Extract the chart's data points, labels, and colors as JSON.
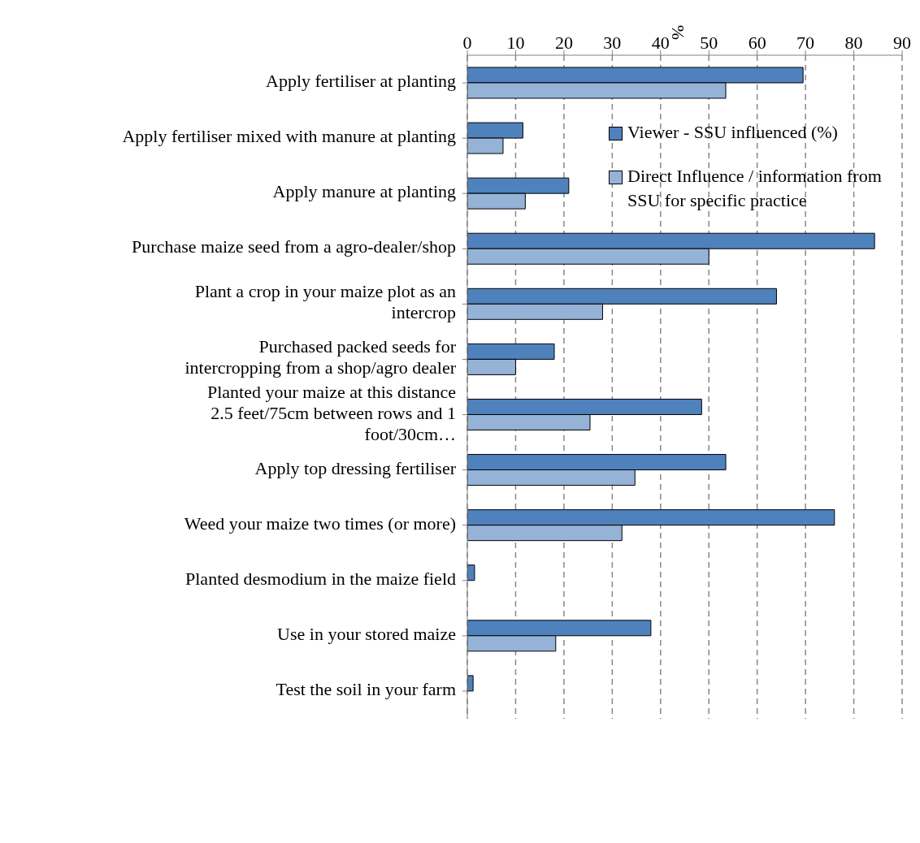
{
  "chart_data": {
    "type": "bar",
    "orientation": "horizontal",
    "x2label": "%",
    "categories": [
      "Apply fertiliser at planting",
      "Apply fertiliser mixed with manure at planting",
      "Apply manure at planting",
      "Purchase maize seed from a agro-dealer/shop",
      "Plant  a crop in your maize plot as an intercrop",
      "Purchased packed  seeds  for intercropping from a shop/agro dealer",
      "Planted your maize at this distance 2.5 feet/75cm between rows and 1 foot/30cm…",
      "Apply top dressing fertiliser",
      "Weed your maize two times (or more)",
      "Planted desmodium in the maize field",
      "Use in your stored maize",
      "Test the soil in your farm"
    ],
    "series": [
      {
        "name": "Viewer - SSU influenced (%)",
        "color": "#4f81bd",
        "axis": "x2",
        "values": [
          69.5,
          11.5,
          21,
          84.3,
          64,
          18,
          48.5,
          53.5,
          76,
          1.5,
          38,
          1.2
        ]
      },
      {
        "name": "Direct Influence / information from SSU for specific practice",
        "color": "#95b3d7",
        "axis": "x2",
        "values": [
          53.5,
          7.4,
          12,
          50,
          28,
          10,
          25.4,
          34.7,
          32,
          0,
          18.3,
          0
        ]
      }
    ],
    "x2lim": [
      0,
      90
    ],
    "x2ticks": [
      0,
      10,
      20,
      30,
      40,
      50,
      60,
      70,
      80,
      90
    ],
    "grid": "x",
    "legend": "top right"
  }
}
